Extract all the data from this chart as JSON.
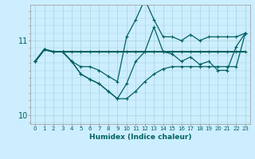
{
  "xlabel": "Humidex (Indice chaleur)",
  "bg_color": "#cceeff",
  "grid_color": "#aad4d4",
  "line_color": "#006060",
  "ylim": [
    9.88,
    11.48
  ],
  "yticks": [
    10,
    11
  ],
  "ytick_labels": [
    "10",
    "11"
  ],
  "x_ticks": [
    0,
    1,
    2,
    3,
    4,
    5,
    6,
    7,
    8,
    9,
    10,
    11,
    12,
    13,
    14,
    15,
    16,
    17,
    18,
    19,
    20,
    21,
    22,
    23
  ],
  "lines": [
    {
      "x": [
        0,
        1,
        2,
        3,
        4,
        5,
        6,
        7,
        8,
        9,
        10,
        11,
        12,
        13,
        14,
        15,
        16,
        17,
        18,
        19,
        20,
        21,
        22,
        23
      ],
      "y": [
        10.72,
        10.88,
        10.85,
        10.85,
        10.85,
        10.85,
        10.85,
        10.85,
        10.85,
        10.85,
        10.85,
        10.85,
        10.85,
        10.85,
        10.85,
        10.85,
        10.85,
        10.85,
        10.85,
        10.85,
        10.85,
        10.85,
        10.85,
        10.85
      ]
    },
    {
      "x": [
        0,
        1,
        2,
        3,
        4,
        5,
        6,
        7,
        8,
        9,
        10,
        11,
        12,
        13,
        14,
        15,
        16,
        17,
        18,
        19,
        20,
        21,
        22,
        23
      ],
      "y": [
        10.72,
        10.88,
        10.85,
        10.85,
        10.72,
        10.65,
        10.65,
        10.6,
        10.52,
        10.45,
        11.05,
        11.28,
        11.55,
        11.28,
        11.05,
        11.05,
        11.0,
        11.08,
        11.0,
        11.05,
        11.05,
        11.05,
        11.05,
        11.1
      ]
    },
    {
      "x": [
        0,
        1,
        2,
        3,
        4,
        5,
        6,
        7,
        8,
        9,
        10,
        11,
        12,
        13,
        14,
        15,
        16,
        17,
        18,
        19,
        20,
        21,
        22,
        23
      ],
      "y": [
        10.72,
        10.88,
        10.85,
        10.85,
        10.72,
        10.55,
        10.48,
        10.42,
        10.32,
        10.22,
        10.22,
        10.32,
        10.45,
        10.55,
        10.62,
        10.65,
        10.65,
        10.65,
        10.65,
        10.65,
        10.65,
        10.65,
        10.65,
        11.1
      ]
    },
    {
      "x": [
        0,
        1,
        2,
        3,
        4,
        5,
        6,
        7,
        8,
        9,
        10,
        11,
        12,
        13,
        14,
        15,
        16,
        17,
        18,
        19,
        20,
        21,
        22,
        23
      ],
      "y": [
        10.72,
        10.88,
        10.85,
        10.85,
        10.72,
        10.55,
        10.48,
        10.42,
        10.32,
        10.22,
        10.42,
        10.72,
        10.85,
        11.18,
        10.85,
        10.82,
        10.72,
        10.78,
        10.68,
        10.72,
        10.6,
        10.6,
        10.92,
        11.1
      ]
    }
  ]
}
